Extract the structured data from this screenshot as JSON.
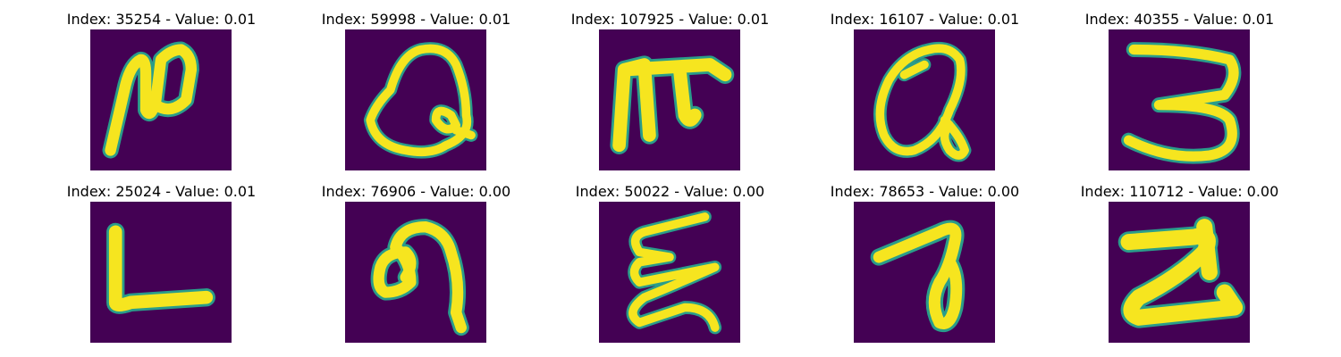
{
  "panels": [
    {
      "title": "Index: 35254 - Value: 0.01"
    },
    {
      "title": "Index: 59998 - Value: 0.01"
    },
    {
      "title": "Index: 107925 - Value: 0.01"
    },
    {
      "title": "Index: 16107 - Value: 0.01"
    },
    {
      "title": "Index: 40355 - Value: 0.01"
    },
    {
      "title": "Index: 25024 - Value: 0.01"
    },
    {
      "title": "Index: 76906 - Value: 0.00"
    },
    {
      "title": "Index: 50022 - Value: 0.00"
    },
    {
      "title": "Index: 78653 - Value: 0.00"
    },
    {
      "title": "Index: 110712 - Value: 0.00"
    }
  ],
  "colors": {
    "background": "#440154",
    "stroke": "#f6e51f",
    "stroke_edge": "#2a9d8a"
  }
}
